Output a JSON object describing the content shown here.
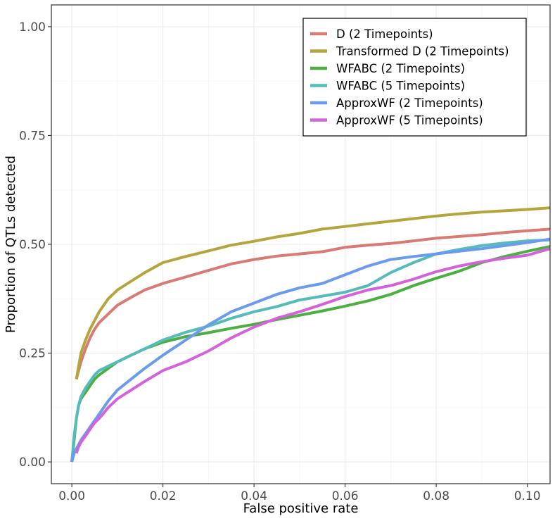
{
  "chart_data": {
    "type": "line",
    "xlabel": "False positive rate",
    "ylabel": "Proportion of QTLs detected",
    "xlim": [
      -0.0045,
      0.105
    ],
    "ylim": [
      -0.05,
      1.05
    ],
    "x_ticks": [
      0.0,
      0.02,
      0.04,
      0.06,
      0.08,
      0.1
    ],
    "x_tick_labels": [
      "0.00",
      "0.02",
      "0.04",
      "0.06",
      "0.08",
      "0.10"
    ],
    "y_ticks": [
      0.0,
      0.25,
      0.5,
      0.75,
      1.0
    ],
    "y_tick_labels": [
      "0.00",
      "0.25",
      "0.50",
      "0.75",
      "1.00"
    ],
    "grid": true,
    "legend_position": "top-right",
    "series": [
      {
        "name": "D (2 Timepoints)",
        "color": "#d77b74",
        "x": [
          0.001,
          0.0015,
          0.002,
          0.003,
          0.004,
          0.005,
          0.006,
          0.008,
          0.01,
          0.013,
          0.016,
          0.02,
          0.025,
          0.03,
          0.035,
          0.04,
          0.045,
          0.05,
          0.055,
          0.06,
          0.065,
          0.07,
          0.075,
          0.08,
          0.085,
          0.09,
          0.095,
          0.1,
          0.105
        ],
        "y": [
          0.19,
          0.21,
          0.23,
          0.26,
          0.285,
          0.305,
          0.32,
          0.34,
          0.36,
          0.378,
          0.395,
          0.41,
          0.425,
          0.44,
          0.455,
          0.465,
          0.473,
          0.478,
          0.483,
          0.493,
          0.498,
          0.502,
          0.508,
          0.514,
          0.518,
          0.522,
          0.527,
          0.531,
          0.535
        ]
      },
      {
        "name": "Transformed D (2 Timepoints)",
        "color": "#b5a53d",
        "x": [
          0.001,
          0.0015,
          0.002,
          0.003,
          0.004,
          0.005,
          0.006,
          0.007,
          0.008,
          0.01,
          0.013,
          0.016,
          0.02,
          0.025,
          0.03,
          0.035,
          0.04,
          0.045,
          0.05,
          0.055,
          0.06,
          0.065,
          0.07,
          0.075,
          0.08,
          0.085,
          0.09,
          0.095,
          0.1,
          0.105
        ],
        "y": [
          0.19,
          0.22,
          0.25,
          0.28,
          0.305,
          0.325,
          0.345,
          0.36,
          0.375,
          0.395,
          0.415,
          0.435,
          0.458,
          0.472,
          0.485,
          0.498,
          0.507,
          0.517,
          0.525,
          0.535,
          0.541,
          0.547,
          0.553,
          0.559,
          0.565,
          0.57,
          0.574,
          0.577,
          0.58,
          0.584
        ]
      },
      {
        "name": "WFABC (2 Timepoints)",
        "color": "#4caf42",
        "x": [
          0.0,
          0.0005,
          0.001,
          0.0015,
          0.002,
          0.003,
          0.004,
          0.005,
          0.006,
          0.008,
          0.01,
          0.013,
          0.016,
          0.02,
          0.025,
          0.03,
          0.035,
          0.04,
          0.045,
          0.05,
          0.055,
          0.06,
          0.065,
          0.07,
          0.075,
          0.08,
          0.085,
          0.09,
          0.095,
          0.1,
          0.105
        ],
        "y": [
          0.0,
          0.05,
          0.1,
          0.13,
          0.145,
          0.16,
          0.175,
          0.19,
          0.2,
          0.215,
          0.23,
          0.245,
          0.26,
          0.275,
          0.288,
          0.297,
          0.307,
          0.316,
          0.327,
          0.337,
          0.347,
          0.358,
          0.37,
          0.385,
          0.405,
          0.422,
          0.438,
          0.458,
          0.472,
          0.484,
          0.495
        ]
      },
      {
        "name": "WFABC (5 Timepoints)",
        "color": "#56bcbb",
        "x": [
          0.0,
          0.0005,
          0.001,
          0.0015,
          0.002,
          0.003,
          0.004,
          0.005,
          0.006,
          0.008,
          0.01,
          0.013,
          0.016,
          0.02,
          0.025,
          0.03,
          0.035,
          0.04,
          0.045,
          0.05,
          0.055,
          0.06,
          0.065,
          0.07,
          0.075,
          0.08,
          0.085,
          0.09,
          0.095,
          0.1,
          0.105
        ],
        "y": [
          0.0,
          0.06,
          0.1,
          0.13,
          0.15,
          0.17,
          0.185,
          0.2,
          0.21,
          0.22,
          0.23,
          0.245,
          0.26,
          0.28,
          0.298,
          0.312,
          0.33,
          0.345,
          0.357,
          0.372,
          0.381,
          0.39,
          0.405,
          0.435,
          0.458,
          0.478,
          0.488,
          0.497,
          0.503,
          0.508,
          0.51
        ]
      },
      {
        "name": "ApproxWF (2 Timepoints)",
        "color": "#6a9bec",
        "x": [
          0.0,
          0.0005,
          0.001,
          0.0015,
          0.002,
          0.003,
          0.004,
          0.005,
          0.006,
          0.008,
          0.01,
          0.013,
          0.016,
          0.02,
          0.025,
          0.03,
          0.035,
          0.04,
          0.045,
          0.05,
          0.055,
          0.06,
          0.065,
          0.07,
          0.075,
          0.08,
          0.085,
          0.09,
          0.095,
          0.1,
          0.105
        ],
        "y": [
          0.0,
          0.02,
          0.03,
          0.04,
          0.05,
          0.065,
          0.08,
          0.095,
          0.11,
          0.14,
          0.165,
          0.19,
          0.215,
          0.245,
          0.28,
          0.315,
          0.345,
          0.365,
          0.385,
          0.4,
          0.41,
          0.43,
          0.45,
          0.465,
          0.472,
          0.478,
          0.484,
          0.49,
          0.497,
          0.504,
          0.512
        ]
      },
      {
        "name": "ApproxWF (5 Timepoints)",
        "color": "#d462da",
        "x": [
          0.001,
          0.0015,
          0.002,
          0.003,
          0.004,
          0.005,
          0.006,
          0.008,
          0.01,
          0.013,
          0.016,
          0.02,
          0.025,
          0.03,
          0.035,
          0.04,
          0.045,
          0.05,
          0.055,
          0.06,
          0.065,
          0.07,
          0.075,
          0.08,
          0.085,
          0.09,
          0.095,
          0.1,
          0.105
        ],
        "y": [
          0.02,
          0.035,
          0.045,
          0.06,
          0.075,
          0.09,
          0.1,
          0.125,
          0.145,
          0.165,
          0.185,
          0.21,
          0.23,
          0.255,
          0.285,
          0.31,
          0.33,
          0.345,
          0.362,
          0.38,
          0.395,
          0.405,
          0.42,
          0.437,
          0.45,
          0.46,
          0.468,
          0.475,
          0.49
        ]
      }
    ]
  }
}
